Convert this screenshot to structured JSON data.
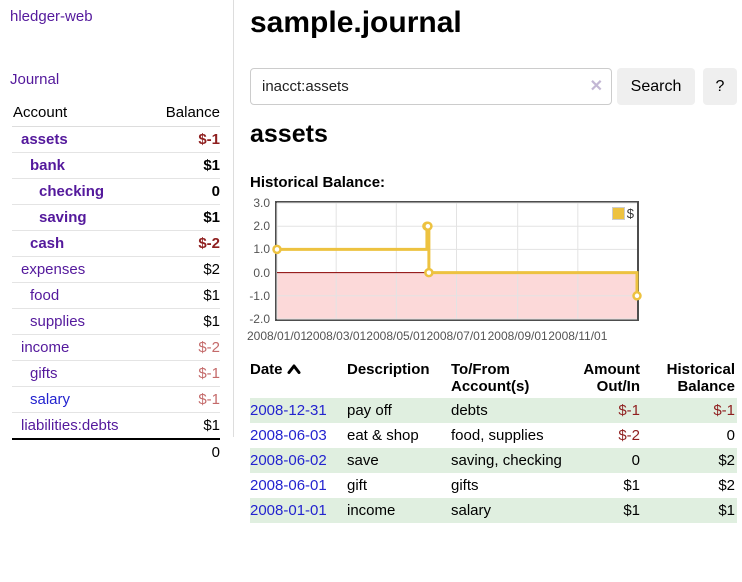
{
  "colors": {
    "purple": "#54199c",
    "link-blue": "#2323cf",
    "neg": "#8f1f1f",
    "neg-dim": "#c46a6a",
    "stripe-green": "#e0efe0",
    "chart-line": "#edc240",
    "chart-fill-negative": "#fcd9d9",
    "chart-zero-line": "#8b0000",
    "grid-border": "#4d4d4d",
    "grid-line": "#e3e3e3",
    "tick-text": "#545454",
    "button-bg": "#efefef",
    "input-border": "#cccccc",
    "clear-icon": "#c3b7d4",
    "divider": "#dddddd"
  },
  "brand": {
    "title": "hledger-web"
  },
  "sidebar": {
    "nav_journal": "Journal",
    "accounts": {
      "headers": [
        "Account",
        "Balance"
      ],
      "rows": [
        {
          "label": "assets",
          "indent": 1,
          "bold": true,
          "balance": "$-1",
          "balance_class": "neg",
          "link": "purple"
        },
        {
          "label": "bank",
          "indent": 2,
          "bold": true,
          "balance": "$1",
          "balance_class": "",
          "link": "purple"
        },
        {
          "label": "checking",
          "indent": 3,
          "bold": true,
          "balance": "0",
          "balance_class": "",
          "link": "purple"
        },
        {
          "label": "saving",
          "indent": 3,
          "bold": true,
          "balance": "$1",
          "balance_class": "",
          "link": "purple"
        },
        {
          "label": "cash",
          "indent": 2,
          "bold": true,
          "balance": "$-2",
          "balance_class": "neg",
          "link": "purple"
        },
        {
          "label": "expenses",
          "indent": 1,
          "bold": false,
          "balance": "$2",
          "balance_class": "",
          "link": "purple"
        },
        {
          "label": "food",
          "indent": 2,
          "bold": false,
          "balance": "$1",
          "balance_class": "",
          "link": "purple"
        },
        {
          "label": "supplies",
          "indent": 2,
          "bold": false,
          "balance": "$1",
          "balance_class": "",
          "link": "purple"
        },
        {
          "label": "income",
          "indent": 1,
          "bold": false,
          "balance": "$-2",
          "balance_class": "negdim",
          "link": "purple"
        },
        {
          "label": "gifts",
          "indent": 2,
          "bold": false,
          "balance": "$-1",
          "balance_class": "negdim",
          "link": "purple"
        },
        {
          "label": "salary",
          "indent": 2,
          "bold": false,
          "balance": "$-1",
          "balance_class": "negdim",
          "link": "blue"
        },
        {
          "label": "liabilities:debts",
          "indent": 1,
          "bold": false,
          "balance": "$1",
          "balance_class": "",
          "link": "purple"
        }
      ],
      "total": "0"
    }
  },
  "main": {
    "title": "sample.journal",
    "search": {
      "value": "inacct:assets",
      "clear_icon": "✕",
      "button_label": "Search",
      "help_label": "?"
    },
    "account_heading": "assets",
    "chart_label": "Historical Balance:"
  },
  "chart_data": {
    "type": "line",
    "step": true,
    "title": "Historical Balance",
    "series": [
      {
        "name": "$",
        "color": "#edc240",
        "points": [
          [
            "2008-01-01",
            1
          ],
          [
            "2008-06-01",
            2
          ],
          [
            "2008-06-02",
            2
          ],
          [
            "2008-06-03",
            0
          ],
          [
            "2008-12-31",
            -1
          ]
        ]
      }
    ],
    "xlim": [
      "2008-01-01",
      "2008-12-31"
    ],
    "ylim": [
      -2,
      3
    ],
    "yticks": [
      3.0,
      2.0,
      1.0,
      0.0,
      -1.0,
      -2.0
    ],
    "xticks": [
      "2008/01/01",
      "2008/03/01",
      "2008/05/01",
      "2008/07/01",
      "2008/09/01",
      "2008/11/01"
    ],
    "legend": {
      "label": "$",
      "position": "top-right"
    },
    "grid": true,
    "negative_region_highlight": true
  },
  "register": {
    "headers": [
      "Date",
      "Description",
      "To/From Account(s)",
      "Amount Out/In",
      "Historical Balance"
    ],
    "rows": [
      {
        "date": "2008-12-31",
        "description": "pay off",
        "accounts": "debts",
        "amount": "$-1",
        "amount_class": "neg",
        "balance": "$-1",
        "balance_class": "neg"
      },
      {
        "date": "2008-06-03",
        "description": "eat & shop",
        "accounts": "food, supplies",
        "amount": "$-2",
        "amount_class": "neg",
        "balance": "0",
        "balance_class": ""
      },
      {
        "date": "2008-06-02",
        "description": "save",
        "accounts": "saving, checking",
        "amount": "0",
        "amount_class": "",
        "balance": "$2",
        "balance_class": ""
      },
      {
        "date": "2008-06-01",
        "description": "gift",
        "accounts": "gifts",
        "amount": "$1",
        "amount_class": "",
        "balance": "$2",
        "balance_class": ""
      },
      {
        "date": "2008-01-01",
        "description": "income",
        "accounts": "salary",
        "amount": "$1",
        "amount_class": "",
        "balance": "$1",
        "balance_class": ""
      }
    ]
  }
}
